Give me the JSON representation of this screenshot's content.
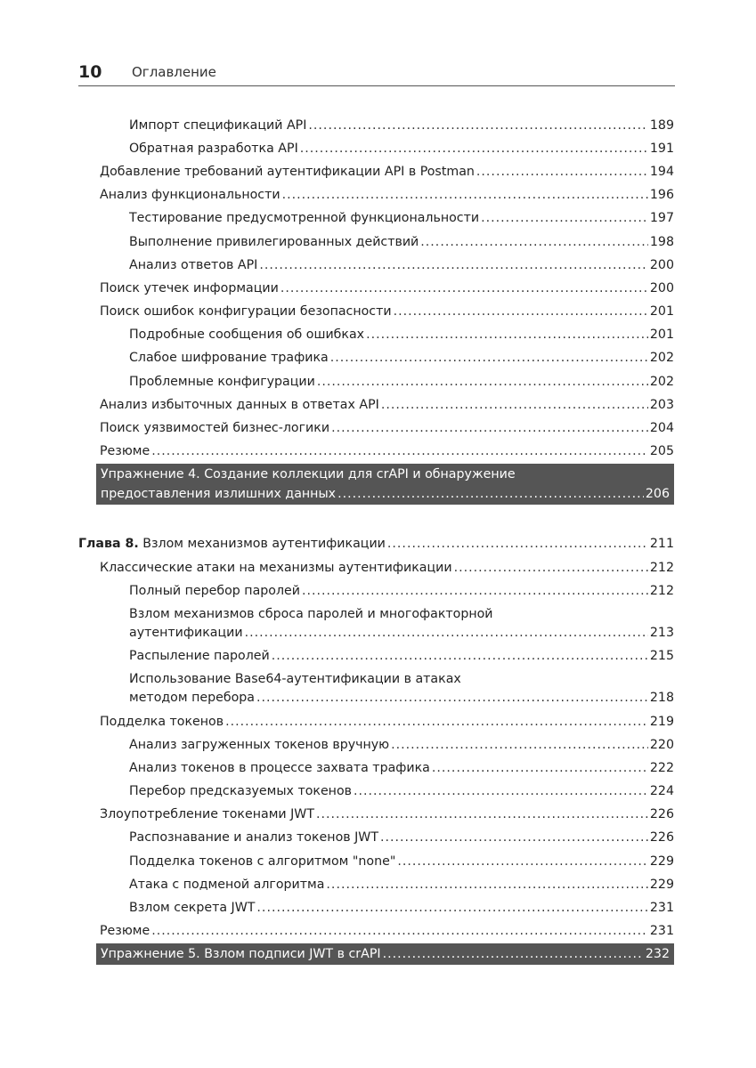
{
  "header": {
    "page_number": "10",
    "title": "Оглавление"
  },
  "entries": [
    {
      "level": 2,
      "lines": [
        "Импорт спецификаций API"
      ],
      "page": "189"
    },
    {
      "level": 2,
      "lines": [
        "Обратная разработка API"
      ],
      "page": "191"
    },
    {
      "level": 1,
      "lines": [
        "Добавление требований аутентификации API в Postman"
      ],
      "page": "194"
    },
    {
      "level": 1,
      "lines": [
        "Анализ функциональности"
      ],
      "page": "196"
    },
    {
      "level": 2,
      "lines": [
        "Тестирование предусмотренной функциональности"
      ],
      "page": "197"
    },
    {
      "level": 2,
      "lines": [
        "Выполнение привилегированных действий"
      ],
      "page": "198"
    },
    {
      "level": 2,
      "lines": [
        "Анализ ответов API"
      ],
      "page": "200"
    },
    {
      "level": 1,
      "lines": [
        "Поиск утечек информации"
      ],
      "page": "200"
    },
    {
      "level": 1,
      "lines": [
        "Поиск ошибок конфигурации безопасности"
      ],
      "page": "201"
    },
    {
      "level": 2,
      "lines": [
        "Подробные сообщения об ошибках"
      ],
      "page": "201"
    },
    {
      "level": 2,
      "lines": [
        "Слабое шифрование трафика"
      ],
      "page": "202"
    },
    {
      "level": 2,
      "lines": [
        "Проблемные конфигурации"
      ],
      "page": "202"
    },
    {
      "level": 1,
      "lines": [
        "Анализ избыточных данных в ответах API"
      ],
      "page": "203"
    },
    {
      "level": 1,
      "lines": [
        "Поиск уязвимостей бизнес-логики"
      ],
      "page": "204"
    },
    {
      "level": 1,
      "lines": [
        "Резюме"
      ],
      "page": "205"
    },
    {
      "type": "exercise",
      "lines": [
        "Упражнение 4. Создание коллекции для crAPI и обнаружение",
        "предоставления излишних данных"
      ],
      "page": "206"
    },
    {
      "type": "chapter",
      "label": "Глава 8.",
      "lines": [
        "Взлом механизмов аутентификации"
      ],
      "page": "211"
    },
    {
      "level": 1,
      "lines": [
        "Классические атаки на механизмы аутентификации"
      ],
      "page": "212"
    },
    {
      "level": 2,
      "lines": [
        "Полный перебор паролей"
      ],
      "page": "212"
    },
    {
      "level": 2,
      "lines": [
        "Взлом механизмов сброса паролей и многофакторной",
        "аутентификации"
      ],
      "page": "213"
    },
    {
      "level": 2,
      "lines": [
        "Распыление паролей"
      ],
      "page": "215"
    },
    {
      "level": 2,
      "lines": [
        "Использование Base64-аутентификации в атаках",
        "методом перебора"
      ],
      "page": "218"
    },
    {
      "level": 1,
      "lines": [
        "Подделка токенов"
      ],
      "page": "219"
    },
    {
      "level": 2,
      "lines": [
        "Анализ загруженных токенов вручную"
      ],
      "page": "220"
    },
    {
      "level": 2,
      "lines": [
        "Анализ токенов в процессе захвата трафика"
      ],
      "page": "222"
    },
    {
      "level": 2,
      "lines": [
        "Перебор предсказуемых токенов"
      ],
      "page": "224"
    },
    {
      "level": 1,
      "lines": [
        "Злоупотребление токенами JWT"
      ],
      "page": "226"
    },
    {
      "level": 2,
      "lines": [
        "Распознавание и анализ токенов JWT"
      ],
      "page": "226"
    },
    {
      "level": 2,
      "lines": [
        "Подделка токенов с алгоритмом \"none\""
      ],
      "page": "229"
    },
    {
      "level": 2,
      "lines": [
        "Атака с подменой алгоритма"
      ],
      "page": "229"
    },
    {
      "level": 2,
      "lines": [
        "Взлом секрета JWT"
      ],
      "page": "231"
    },
    {
      "level": 1,
      "lines": [
        "Резюме"
      ],
      "page": "231"
    },
    {
      "type": "exercise",
      "lines": [
        "Упражнение 5. Взлом подписи JWT в crAPI"
      ],
      "page": "232"
    }
  ]
}
